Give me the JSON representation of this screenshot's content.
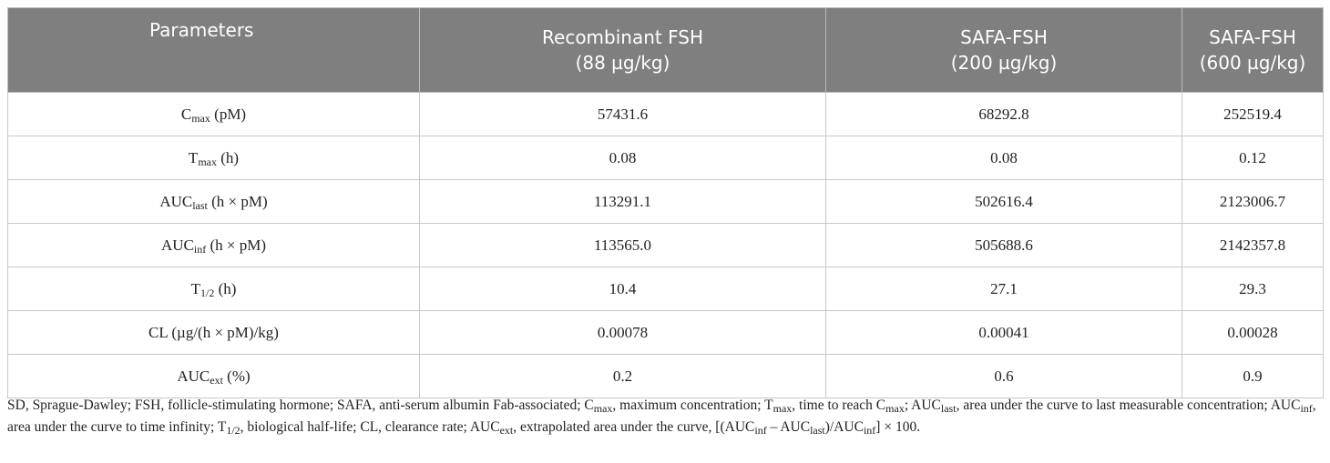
{
  "table": {
    "header": [
      [
        "Parameters"
      ],
      [
        "Recombinant FSH",
        "(88 µg/kg)"
      ],
      [
        "SAFA-FSH",
        "(200 µg/kg)"
      ],
      [
        "SAFA-FSH",
        "(600 µg/kg)"
      ]
    ],
    "rows": [
      {
        "param": [
          "C",
          "max",
          " (pM)"
        ],
        "values": [
          "57431.6",
          "68292.8",
          "252519.4"
        ]
      },
      {
        "param": [
          "T",
          "max",
          " (h)"
        ],
        "values": [
          "0.08",
          "0.08",
          "0.12"
        ]
      },
      {
        "param": [
          "AUC",
          "last",
          " (h × pM)"
        ],
        "values": [
          "113291.1",
          "502616.4",
          "2123006.7"
        ]
      },
      {
        "param": [
          "AUC",
          "inf",
          " (h × pM)"
        ],
        "values": [
          "113565.0",
          "505688.6",
          "2142357.8"
        ]
      },
      {
        "param": [
          "T",
          "1/2",
          " (h)"
        ],
        "values": [
          "10.4",
          "27.1",
          "29.3"
        ]
      },
      {
        "param": [
          "CL (µg/(h × pM)/kg)"
        ],
        "values": [
          "0.00078",
          "0.00041",
          "0.00028"
        ]
      },
      {
        "param": [
          "AUC",
          "ext",
          " (%)"
        ],
        "values": [
          "0.2",
          "0.6",
          "0.9"
        ]
      }
    ]
  },
  "footnote": [
    "SD, Sprague-Dawley; FSH, follicle-stimulating hormone; SAFA, anti-serum albumin Fab-associated; C",
    "max",
    ", maximum concentration; T",
    "max",
    ", time to reach C",
    "max",
    "; AUC",
    "last",
    ", area under the curve to last measurable concentration; AUC",
    "inf",
    ", area under the curve to time infinity; T",
    "1/2",
    ", biological half-life; CL, clearance rate; AUC",
    "ext",
    ", extrapolated area under the curve, [(AUC",
    "inf",
    " – AUC",
    "last",
    ")/AUC",
    "inf",
    "] × 100."
  ]
}
